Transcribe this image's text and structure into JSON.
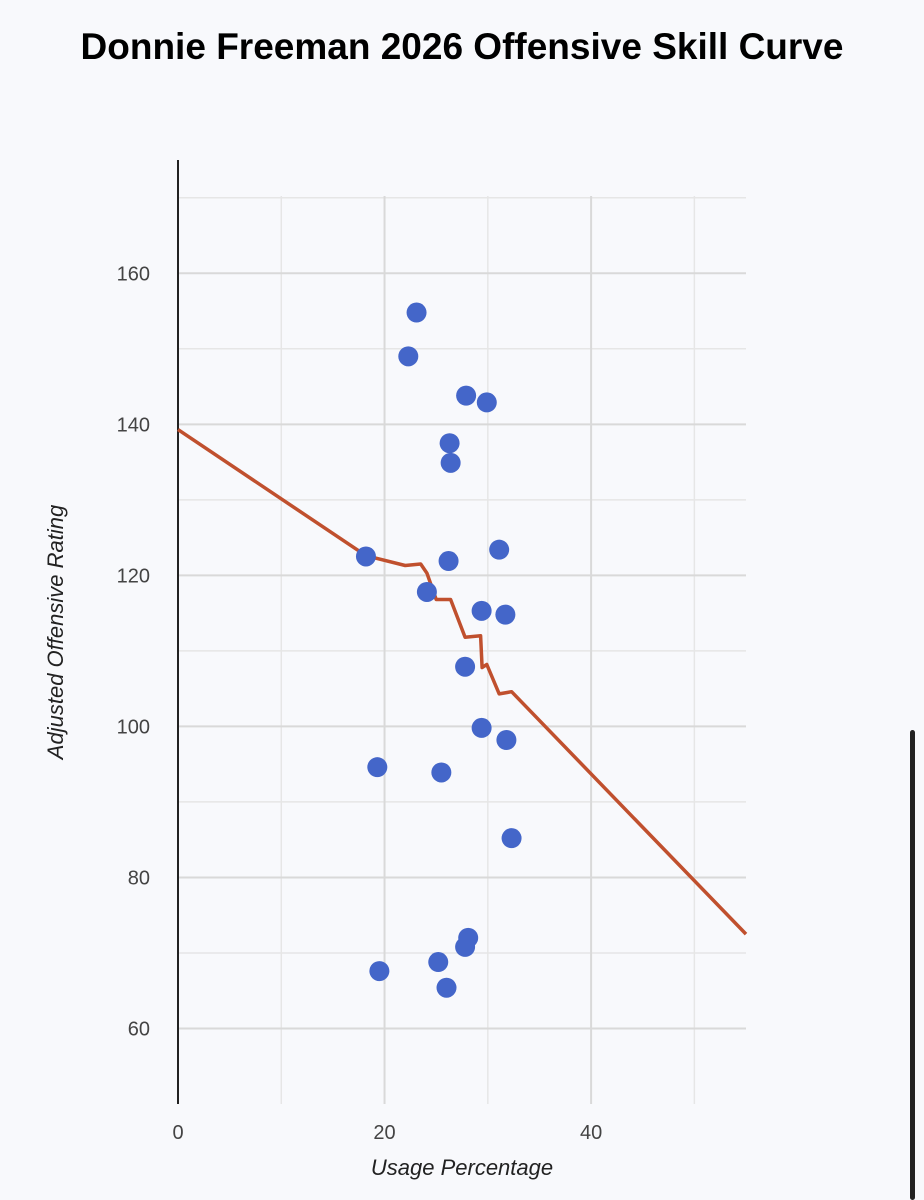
{
  "chart_data": {
    "type": "scatter",
    "title": "Donnie Freeman 2026 Offensive Skill Curve",
    "xlabel": "Usage Percentage",
    "ylabel": "Adjusted Offensive Rating",
    "xlim": [
      0,
      55
    ],
    "ylim": [
      50,
      175
    ],
    "xticks": [
      "0",
      "20",
      "40"
    ],
    "xtick_values": [
      0,
      20,
      40
    ],
    "yticks": [
      "60",
      "80",
      "100",
      "120",
      "140",
      "160"
    ],
    "ytick_values": [
      60,
      80,
      100,
      120,
      140,
      160
    ],
    "x_minor_gridlines": [
      10,
      30,
      50
    ],
    "y_minor_gridlines": [
      70,
      90,
      110,
      130,
      150,
      170
    ],
    "grid": true,
    "legend": "none",
    "colors": {
      "points": "#4466c9",
      "curve": "#c0502e",
      "grid": "#d9d9d9",
      "axis": "#222222"
    },
    "points": [
      {
        "x": 23.1,
        "y": 154.8
      },
      {
        "x": 22.3,
        "y": 149.0
      },
      {
        "x": 27.9,
        "y": 143.8
      },
      {
        "x": 29.9,
        "y": 142.9
      },
      {
        "x": 26.3,
        "y": 137.5
      },
      {
        "x": 26.4,
        "y": 134.9
      },
      {
        "x": 18.2,
        "y": 122.5
      },
      {
        "x": 26.2,
        "y": 121.9
      },
      {
        "x": 31.1,
        "y": 123.4
      },
      {
        "x": 24.1,
        "y": 117.8
      },
      {
        "x": 29.4,
        "y": 115.3
      },
      {
        "x": 31.7,
        "y": 114.8
      },
      {
        "x": 27.8,
        "y": 107.9
      },
      {
        "x": 29.4,
        "y": 99.8
      },
      {
        "x": 31.8,
        "y": 98.2
      },
      {
        "x": 19.3,
        "y": 94.6
      },
      {
        "x": 25.5,
        "y": 93.9
      },
      {
        "x": 32.3,
        "y": 85.2
      },
      {
        "x": 28.1,
        "y": 72.0
      },
      {
        "x": 27.8,
        "y": 70.8
      },
      {
        "x": 25.2,
        "y": 68.8
      },
      {
        "x": 19.5,
        "y": 67.6
      },
      {
        "x": 26.0,
        "y": 65.4
      }
    ],
    "curve": [
      {
        "x": 0,
        "y": 139.3
      },
      {
        "x": 18.2,
        "y": 122.6
      },
      {
        "x": 22.0,
        "y": 121.3
      },
      {
        "x": 23.5,
        "y": 121.5
      },
      {
        "x": 24.1,
        "y": 120.3
      },
      {
        "x": 25.0,
        "y": 116.8
      },
      {
        "x": 26.4,
        "y": 116.8
      },
      {
        "x": 27.8,
        "y": 111.8
      },
      {
        "x": 29.3,
        "y": 112.0
      },
      {
        "x": 29.45,
        "y": 107.8
      },
      {
        "x": 29.9,
        "y": 108.2
      },
      {
        "x": 31.1,
        "y": 104.3
      },
      {
        "x": 32.3,
        "y": 104.6
      },
      {
        "x": 55,
        "y": 72.5
      }
    ]
  }
}
